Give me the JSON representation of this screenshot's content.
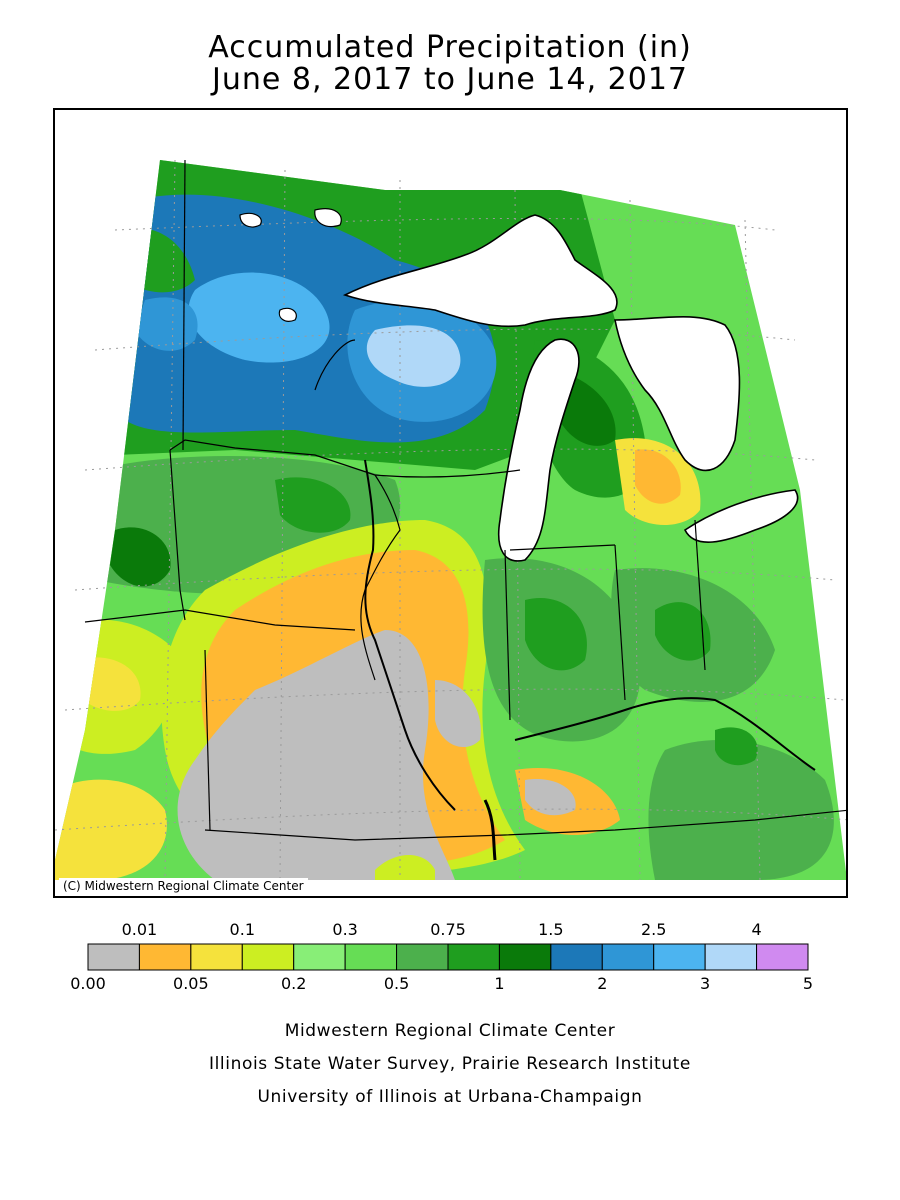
{
  "title": {
    "line1": "Accumulated Precipitation (in)",
    "line2": "June 8, 2017 to June 14, 2017"
  },
  "map": {
    "copyright": "(C) Midwestern Regional Climate Center"
  },
  "legend": {
    "upper_labels": [
      "0.01",
      "0.1",
      "0.3",
      "0.75",
      "1.5",
      "2.5",
      "4"
    ],
    "lower_labels": [
      "0.00",
      "0.05",
      "0.2",
      "0.5",
      "1",
      "2",
      "3",
      "5"
    ],
    "colors": [
      "#bebebe",
      "#ffb833",
      "#f5e23c",
      "#ccee22",
      "#88ee77",
      "#66dd55",
      "#4cb04c",
      "#1f9e1f",
      "#0a7a0a",
      "#1c78b8",
      "#2f96d6",
      "#4cb4f0",
      "#b0d8f8",
      "#d08af0"
    ]
  },
  "credits": {
    "line1": "Midwestern Regional Climate Center",
    "line2": "Illinois State Water Survey, Prairie Research Institute",
    "line3": "University of Illinois at Urbana-Champaign"
  }
}
